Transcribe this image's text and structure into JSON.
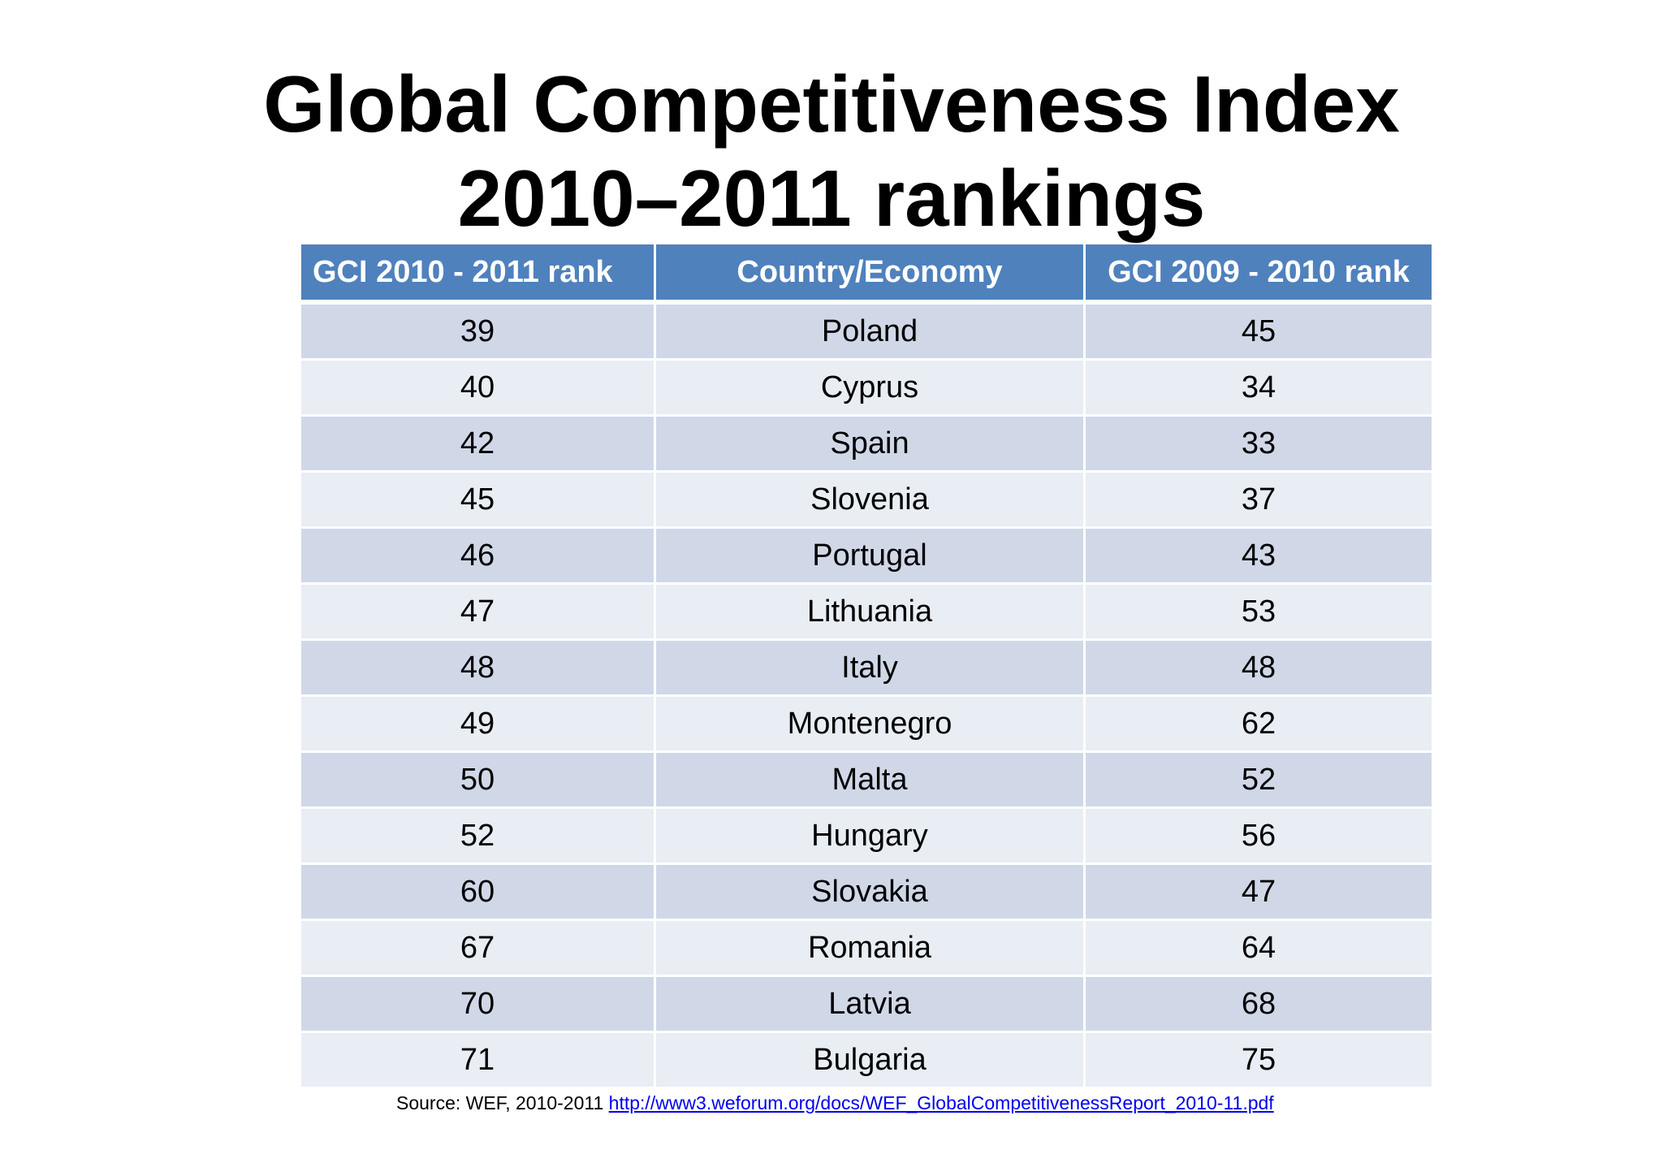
{
  "title": {
    "line1": "Global Competitiveness Index",
    "line2": "2010–2011 rankings"
  },
  "table": {
    "headers": [
      "GCI 2010 - 2011 rank",
      "Country/Economy",
      "GCI 2009 - 2010 rank"
    ],
    "rows": [
      [
        "39",
        "Poland",
        "45"
      ],
      [
        "40",
        "Cyprus",
        "34"
      ],
      [
        "42",
        "Spain",
        "33"
      ],
      [
        "45",
        "Slovenia",
        "37"
      ],
      [
        "46",
        "Portugal",
        "43"
      ],
      [
        "47",
        "Lithuania",
        "53"
      ],
      [
        "48",
        "Italy",
        "48"
      ],
      [
        "49",
        "Montenegro",
        "62"
      ],
      [
        "50",
        "Malta",
        "52"
      ],
      [
        "52",
        "Hungary",
        "56"
      ],
      [
        "60",
        "Slovakia",
        "47"
      ],
      [
        "67",
        "Romania",
        "64"
      ],
      [
        "70",
        "Latvia",
        "68"
      ],
      [
        "71",
        "Bulgaria",
        "75"
      ]
    ]
  },
  "source": {
    "prefix": "Source: WEF, 2010-2011",
    "link_text": "http://www3.weforum.org/docs/WEF_GlobalCompetitivenessReport_2010-11.pdf"
  },
  "colors": {
    "header_bg": "#4f81bd",
    "row_dark": "#d0d8e8",
    "row_light": "#e9edf4",
    "link": "#0000ee"
  }
}
